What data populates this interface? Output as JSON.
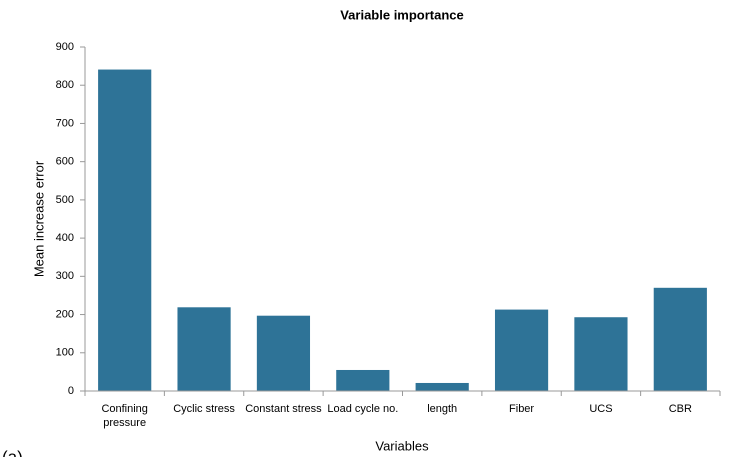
{
  "chart_data": {
    "type": "bar",
    "title": "Variable importance",
    "x_label": "Variables",
    "y_label": "Mean increase error",
    "categories": [
      "Confining pressure",
      "Cyclic stress",
      "Constant stress",
      "Load cycle no.",
      "length",
      "Fiber",
      "UCS",
      "CBR"
    ],
    "values": [
      841,
      219,
      197,
      55,
      21,
      213,
      193,
      270
    ],
    "color": "#2e7397",
    "ylim": [
      0,
      900
    ],
    "yticks": [
      0,
      100,
      200,
      300,
      400,
      500,
      600,
      700,
      800,
      900
    ],
    "grid": false
  },
  "panel_label": "(a)"
}
